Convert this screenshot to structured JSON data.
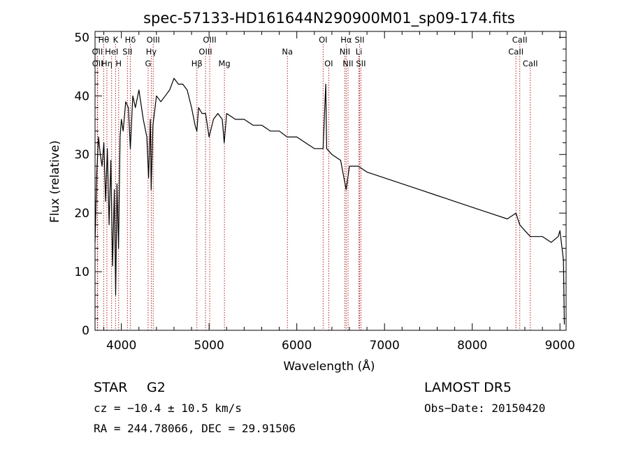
{
  "chart_data": {
    "type": "line",
    "title": "spec-57133-HD161644N290900M01_sp09-174.fits",
    "xlabel": "Wavelength (Å)",
    "ylabel": "Flux (relative)",
    "xlim": [
      3700,
      9070
    ],
    "ylim": [
      0,
      51
    ],
    "x_ticks": [
      4000,
      5000,
      6000,
      7000,
      8000,
      9000
    ],
    "y_ticks": [
      0,
      10,
      20,
      30,
      40,
      50
    ],
    "grid": false,
    "line_color": "#000000",
    "marker_color": "#b22222",
    "series": [
      {
        "x": [
          3700,
          3720,
          3740,
          3760,
          3780,
          3800,
          3820,
          3840,
          3860,
          3880,
          3900,
          3920,
          3935,
          3950,
          3968,
          3985,
          4000,
          4020,
          4050,
          4080,
          4102,
          4130,
          4160,
          4200,
          4250,
          4290,
          4310,
          4330,
          4340,
          4360,
          4400,
          4450,
          4500,
          4550,
          4600,
          4650,
          4700,
          4750,
          4800,
          4840,
          4861,
          4880,
          4920,
          4960,
          5000,
          5050,
          5100,
          5150,
          5172,
          5200,
          5300,
          5400,
          5500,
          5600,
          5700,
          5800,
          5890,
          5950,
          6000,
          6100,
          6200,
          6300,
          6330,
          6340,
          6400,
          6500,
          6563,
          6600,
          6700,
          6800,
          7000,
          7200,
          7400,
          7600,
          7800,
          8000,
          8200,
          8400,
          8498,
          8542,
          8600,
          8662,
          8700,
          8800,
          8900,
          8980,
          9000,
          9040,
          9050
        ],
        "values": [
          15,
          27,
          33,
          30,
          28,
          32,
          22,
          31,
          18,
          29,
          11,
          24,
          6,
          25,
          14,
          33,
          36,
          34,
          39,
          38,
          31,
          40,
          38,
          41,
          36,
          33,
          26,
          36,
          24,
          35,
          40,
          39,
          40,
          41,
          43,
          42,
          42,
          41,
          38,
          35,
          34,
          38,
          37,
          37,
          33,
          36,
          37,
          36,
          32,
          37,
          36,
          36,
          35,
          35,
          34,
          34,
          33,
          33,
          33,
          32,
          31,
          31,
          42,
          31,
          30,
          29,
          24,
          28,
          28,
          27,
          26,
          25,
          24,
          23,
          22,
          21,
          20,
          19,
          20,
          18,
          17,
          16,
          16,
          16,
          15,
          16,
          17,
          12,
          1
        ]
      }
    ],
    "line_markers": [
      {
        "label": "Hθ",
        "x": 3798,
        "row": 1
      },
      {
        "label": "OII",
        "x": 3727,
        "row": 2
      },
      {
        "label": "OII",
        "x": 3729,
        "row": 3
      },
      {
        "label": "Hη",
        "x": 3835,
        "row": 3
      },
      {
        "label": "HeI",
        "x": 3889,
        "row": 2
      },
      {
        "label": "K",
        "x": 3934,
        "row": 1
      },
      {
        "label": "H",
        "x": 3969,
        "row": 3
      },
      {
        "label": "SII",
        "x": 4069,
        "row": 2
      },
      {
        "label": "Hδ",
        "x": 4102,
        "row": 1
      },
      {
        "label": "OIII",
        "x": 4363,
        "row": 1
      },
      {
        "label": "Hγ",
        "x": 4341,
        "row": 2
      },
      {
        "label": "G",
        "x": 4305,
        "row": 3
      },
      {
        "label": "Hβ",
        "x": 4861,
        "row": 3
      },
      {
        "label": "OIII",
        "x": 5007,
        "row": 1
      },
      {
        "label": "OIII",
        "x": 4959,
        "row": 2
      },
      {
        "label": "Mg",
        "x": 5175,
        "row": 3
      },
      {
        "label": "Na",
        "x": 5893,
        "row": 2
      },
      {
        "label": "OI",
        "x": 6300,
        "row": 1
      },
      {
        "label": "OI",
        "x": 6364,
        "row": 3
      },
      {
        "label": "Hα",
        "x": 6563,
        "row": 1
      },
      {
        "label": "NII",
        "x": 6548,
        "row": 2
      },
      {
        "label": "NII",
        "x": 6584,
        "row": 3
      },
      {
        "label": "SII",
        "x": 6716,
        "row": 1
      },
      {
        "label": "Li",
        "x": 6708,
        "row": 2
      },
      {
        "label": "SII",
        "x": 6731,
        "row": 3
      },
      {
        "label": "CaII",
        "x": 8542,
        "row": 1
      },
      {
        "label": "CaII",
        "x": 8498,
        "row": 2
      },
      {
        "label": "CaII",
        "x": 8662,
        "row": 3
      }
    ]
  },
  "info": {
    "object_class": "STAR",
    "subclass": "G2",
    "survey": "LAMOST DR5",
    "redshift": "cz = −10.4 ± 10.5 km/s",
    "obs_date": "Obs−Date: 20150420",
    "coords": "RA = 244.78066, DEC =  29.91506"
  }
}
